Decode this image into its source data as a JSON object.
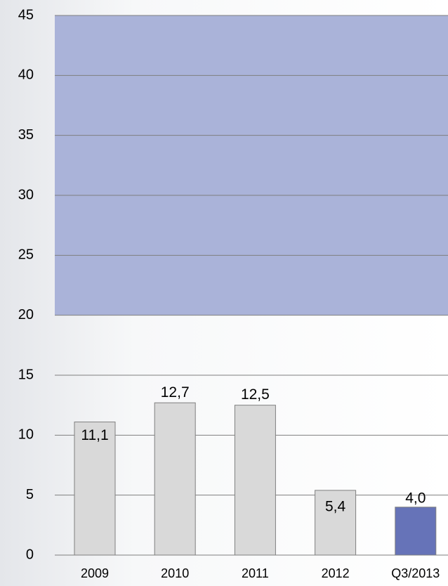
{
  "chart_data": {
    "type": "bar",
    "categories": [
      "2009",
      "2010",
      "2011",
      "2012",
      "Q3/2013"
    ],
    "values": [
      11.1,
      12.7,
      12.5,
      5.4,
      4.0
    ],
    "value_labels": [
      "11,1",
      "12,7",
      "12,5",
      "5,4",
      "4,0"
    ],
    "colors": [
      "#d9d9d9",
      "#d9d9d9",
      "#d9d9d9",
      "#d9d9d9",
      "#6673b8"
    ],
    "shaded_range": [
      20,
      45
    ],
    "shaded_color": "#aab3d9",
    "ylim": [
      0,
      45
    ],
    "yticks": [
      0,
      5,
      10,
      15,
      20,
      25,
      30,
      35,
      40,
      45
    ],
    "grid": true
  }
}
